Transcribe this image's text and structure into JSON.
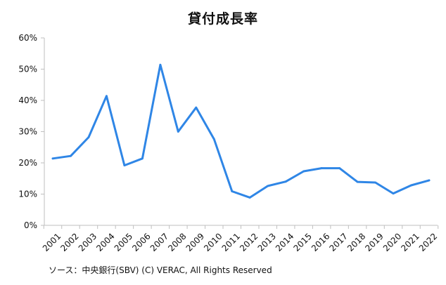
{
  "title": "貸付成長率",
  "source": "ソース：中央銀行(SBV)  (C) VERAC, All Rights Reserved",
  "colors": {
    "line": "#2f86e6",
    "axis": "#bfbfbf",
    "text": "#111111"
  },
  "chart_data": {
    "type": "line",
    "title": "貸付成長率",
    "xlabel": "",
    "ylabel": "",
    "x": [
      "2001",
      "2002",
      "2003",
      "2004",
      "2005",
      "2006",
      "2007",
      "2008",
      "2009",
      "2010",
      "2011",
      "2012",
      "2013",
      "2014",
      "2015",
      "2016",
      "2017",
      "2018",
      "2019",
      "2020",
      "2021",
      "2022"
    ],
    "series": [
      {
        "values": [
          21.4,
          22.2,
          28.2,
          41.4,
          19.2,
          21.4,
          51.4,
          30.0,
          37.7,
          27.6,
          10.9,
          8.9,
          12.6,
          14.0,
          17.3,
          18.3,
          18.3,
          13.9,
          13.7,
          10.2,
          12.8,
          14.4
        ]
      }
    ],
    "ylim": [
      0,
      60
    ],
    "yticks": [
      0,
      10,
      20,
      30,
      40,
      50,
      60
    ],
    "ytick_labels": [
      "0%",
      "10%",
      "20%",
      "30%",
      "40%",
      "50%",
      "60%"
    ],
    "grid": false,
    "legend": "none"
  }
}
